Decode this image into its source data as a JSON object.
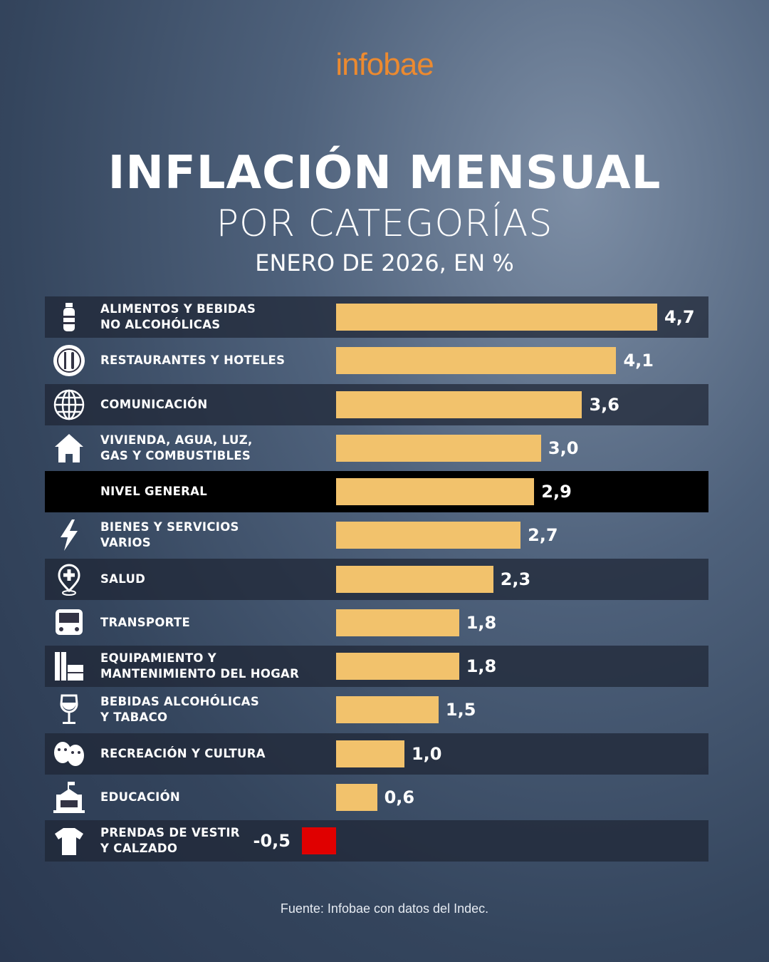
{
  "logo": "infobae",
  "chart_data": {
    "type": "hbar",
    "title": "INFLACIÓN MENSUAL",
    "subtitle": "POR CATEGORÍAS",
    "note": "ENERO DE 2026, EN %",
    "source": "Fuente: Infobae con datos del Indec.",
    "categories": [
      "ALIMENTOS Y BEBIDAS\nNO ALCOHÓLICAS",
      "RESTAURANTES Y HOTELES",
      "COMUNICACIÓN",
      "VIVIENDA, AGUA, LUZ,\nGAS Y COMBUSTIBLES",
      "NIVEL GENERAL",
      "BIENES Y SERVICIOS\nVARIOS",
      "SALUD",
      "TRANSPORTE",
      "EQUIPAMIENTO Y\nMANTENIMIENTO DEL HOGAR",
      "BEBIDAS ALCOHÓLICAS\nY TABACO",
      "RECREACIÓN Y CULTURA",
      "EDUCACIÓN",
      "PRENDAS DE VESTIR\nY CALZADO"
    ],
    "values": [
      4.7,
      4.1,
      3.6,
      3.0,
      2.9,
      2.7,
      2.3,
      1.8,
      1.8,
      1.5,
      1.0,
      0.6,
      -0.5
    ],
    "value_labels": [
      "4,7",
      "4,1",
      "3,6",
      "3,0",
      "2,9",
      "2,7",
      "2,3",
      "1,8",
      "1,8",
      "1,5",
      "1,0",
      "0,6",
      "-0,5"
    ],
    "color": "#f2c26c",
    "negative_color": "#e00000",
    "xlim": [
      -0.5,
      5.45
    ]
  }
}
